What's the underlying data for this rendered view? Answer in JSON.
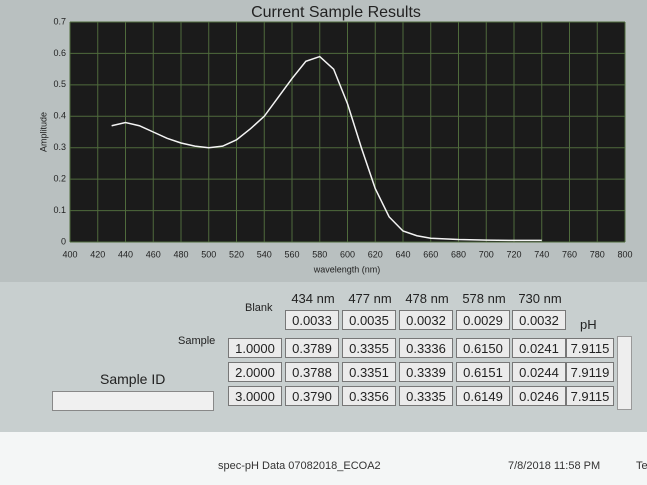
{
  "chart_data": {
    "type": "line",
    "title": "Current Sample Results",
    "y_label": "Amplitude",
    "x_label": "wavelength (nm)",
    "x": [
      430,
      440,
      450,
      460,
      470,
      480,
      490,
      500,
      510,
      520,
      530,
      540,
      550,
      560,
      570,
      580,
      590,
      600,
      610,
      620,
      630,
      640,
      650,
      660,
      680,
      700,
      720,
      740
    ],
    "values": [
      0.37,
      0.38,
      0.37,
      0.35,
      0.33,
      0.315,
      0.305,
      0.3,
      0.305,
      0.325,
      0.36,
      0.4,
      0.46,
      0.52,
      0.575,
      0.59,
      0.55,
      0.44,
      0.3,
      0.17,
      0.08,
      0.035,
      0.02,
      0.012,
      0.008,
      0.006,
      0.005,
      0.005
    ],
    "color": "#f4f4f4",
    "xlim": [
      400,
      800
    ],
    "xticks": [
      400,
      420,
      440,
      460,
      480,
      500,
      520,
      540,
      560,
      580,
      600,
      620,
      640,
      660,
      680,
      700,
      720,
      740,
      760,
      780,
      800
    ],
    "ylim": [
      0,
      0.7
    ],
    "yticks": [
      0,
      0.1,
      0.2,
      0.3,
      0.4,
      0.5,
      0.6,
      0.7
    ],
    "grid": true
  },
  "table": {
    "columns": [
      "434 nm",
      "477 nm",
      "478 nm",
      "578 nm",
      "730 nm"
    ],
    "blank_label": "Blank",
    "blank": [
      "0.0033",
      "0.0035",
      "0.0032",
      "0.0029",
      "0.0032"
    ],
    "sample_label": "Sample",
    "ph_label": "pH",
    "rows": [
      [
        "1.0000",
        "0.3789",
        "0.3355",
        "0.3336",
        "0.6150",
        "0.0241",
        "7.9115"
      ],
      [
        "2.0000",
        "0.3788",
        "0.3351",
        "0.3339",
        "0.6151",
        "0.0244",
        "7.9119"
      ],
      [
        "3.0000",
        "0.3790",
        "0.3356",
        "0.3335",
        "0.6149",
        "0.0246",
        "7.9115"
      ]
    ]
  },
  "sample_id": {
    "label": "Sample ID"
  },
  "files": [
    {
      "name": "spec-pH Data 07082018_ECOA2",
      "date": "7/8/2018 11:58 PM",
      "type": "Te"
    }
  ]
}
